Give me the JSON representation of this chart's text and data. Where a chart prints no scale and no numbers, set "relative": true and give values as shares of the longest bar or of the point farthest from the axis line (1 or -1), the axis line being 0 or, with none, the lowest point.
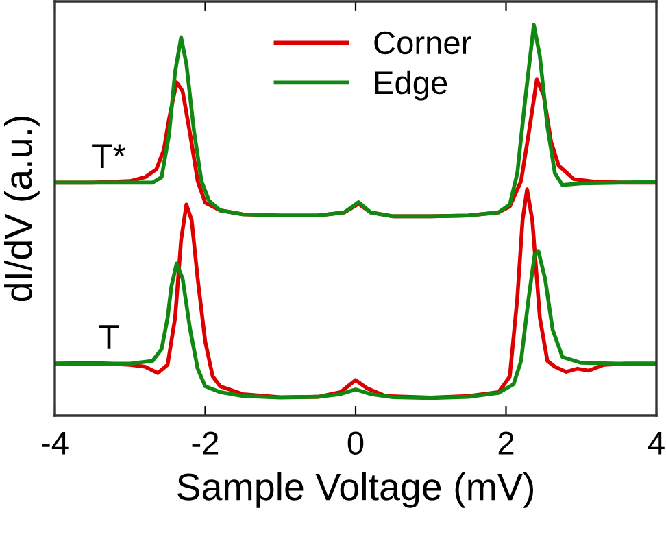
{
  "chart_data": {
    "type": "line",
    "relative": true,
    "xlabel": "Sample Voltage (mV)",
    "ylabel": "dI/dV (a.u.)",
    "xlim": [
      -4,
      4
    ],
    "xticks": [
      -4,
      -2,
      0,
      2,
      4
    ],
    "legend": "top",
    "grid": false,
    "line_style": "solid",
    "marker": "none",
    "annotations": [
      "T*",
      "T"
    ],
    "series": [
      {
        "name": "Corner",
        "color": "#dd0000",
        "x": [
          -4,
          -3.5,
          -3.0,
          -2.8,
          -2.65,
          -2.55,
          -2.48,
          -2.38,
          -2.3,
          -2.2,
          -2.1,
          -2.0,
          -1.8,
          -1.5,
          -1.0,
          -0.5,
          -0.15,
          0.04,
          0.2,
          0.5,
          1.0,
          1.5,
          1.9,
          2.05,
          2.2,
          2.3,
          2.41,
          2.5,
          2.6,
          2.7,
          2.9,
          3.2,
          3.6,
          4.0
        ],
        "values": [
          0.596,
          0.596,
          0.6,
          0.61,
          0.63,
          0.68,
          0.76,
          0.853,
          0.83,
          0.72,
          0.6,
          0.545,
          0.525,
          0.515,
          0.512,
          0.512,
          0.52,
          0.542,
          0.52,
          0.51,
          0.51,
          0.512,
          0.52,
          0.535,
          0.6,
          0.72,
          0.86,
          0.82,
          0.7,
          0.64,
          0.605,
          0.598,
          0.596,
          0.596
        ]
      },
      {
        "name": "Edge",
        "color": "#118811",
        "x": [
          -4,
          -3.0,
          -2.7,
          -2.58,
          -2.48,
          -2.4,
          -2.32,
          -2.25,
          -2.15,
          -2.05,
          -1.95,
          -1.8,
          -1.5,
          -1.0,
          -0.5,
          -0.15,
          0.04,
          0.2,
          0.5,
          1.0,
          1.5,
          1.9,
          2.05,
          2.15,
          2.25,
          2.37,
          2.45,
          2.55,
          2.65,
          2.75,
          3.0,
          3.5,
          4.0
        ],
        "values": [
          0.596,
          0.596,
          0.596,
          0.61,
          0.72,
          0.88,
          0.968,
          0.9,
          0.73,
          0.6,
          0.55,
          0.525,
          0.515,
          0.512,
          0.512,
          0.52,
          0.546,
          0.52,
          0.51,
          0.51,
          0.512,
          0.52,
          0.54,
          0.62,
          0.8,
          1.0,
          0.92,
          0.74,
          0.62,
          0.59,
          0.594,
          0.596,
          0.598
        ]
      },
      {
        "color": "#dd0000",
        "x": [
          -4,
          -3.5,
          -3.0,
          -2.8,
          -2.63,
          -2.5,
          -2.4,
          -2.32,
          -2.25,
          -2.18,
          -2.1,
          -2.0,
          -1.9,
          -1.8,
          -1.5,
          -1.0,
          -0.5,
          -0.2,
          0.0,
          0.15,
          0.4,
          1.0,
          1.5,
          1.9,
          2.05,
          2.15,
          2.22,
          2.28,
          2.35,
          2.45,
          2.55,
          2.65,
          2.8,
          2.95,
          3.1,
          3.3,
          3.6,
          4.0
        ],
        "values": [
          0.133,
          0.135,
          0.13,
          0.125,
          0.109,
          0.13,
          0.25,
          0.45,
          0.54,
          0.5,
          0.35,
          0.19,
          0.1,
          0.075,
          0.055,
          0.047,
          0.048,
          0.06,
          0.091,
          0.07,
          0.05,
          0.046,
          0.05,
          0.06,
          0.1,
          0.3,
          0.5,
          0.579,
          0.5,
          0.25,
          0.14,
          0.125,
          0.112,
          0.12,
          0.115,
          0.13,
          0.133,
          0.133
        ]
      },
      {
        "color": "#118811",
        "x": [
          -4,
          -3.0,
          -2.7,
          -2.58,
          -2.5,
          -2.45,
          -2.38,
          -2.3,
          -2.2,
          -2.1,
          -2.0,
          -1.8,
          -1.5,
          -1.0,
          -0.5,
          -0.2,
          0.0,
          0.2,
          0.5,
          1.0,
          1.5,
          1.9,
          2.1,
          2.2,
          2.3,
          2.38,
          2.43,
          2.52,
          2.62,
          2.75,
          3.0,
          3.5,
          4.0
        ],
        "values": [
          0.133,
          0.133,
          0.14,
          0.17,
          0.25,
          0.33,
          0.389,
          0.35,
          0.22,
          0.12,
          0.075,
          0.06,
          0.05,
          0.046,
          0.048,
          0.055,
          0.067,
          0.055,
          0.047,
          0.045,
          0.048,
          0.058,
          0.08,
          0.14,
          0.3,
          0.41,
          0.421,
          0.35,
          0.22,
          0.15,
          0.135,
          0.133,
          0.133
        ]
      }
    ]
  }
}
